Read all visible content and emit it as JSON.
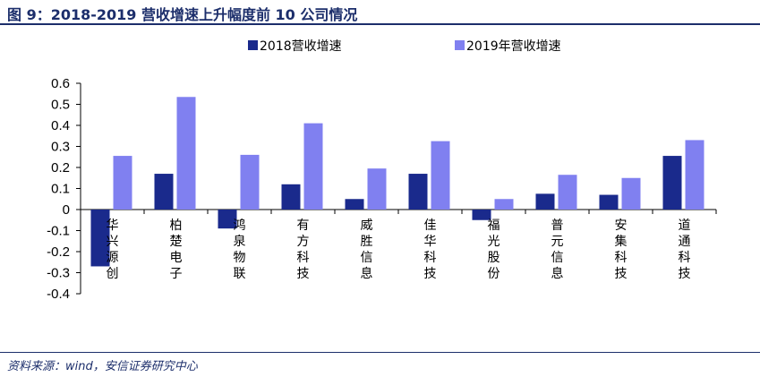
{
  "header": {
    "title": "图 9：2018-2019 营收增速上升幅度前 10 公司情况"
  },
  "footer": {
    "source": "资料来源：wind，安信证券研究中心"
  },
  "chart_data": {
    "type": "bar",
    "categories": [
      "华兴源创",
      "柏楚电子",
      "鸿泉物联",
      "有方科技",
      "威胜信息",
      "佳华科技",
      "福光股份",
      "普元信息",
      "安集科技",
      "道通科技"
    ],
    "series": [
      {
        "name": "2018营收增速",
        "color": "#1a2a8c",
        "values": [
          -0.27,
          0.17,
          -0.09,
          0.12,
          0.05,
          0.17,
          -0.05,
          0.075,
          0.07,
          0.255
        ]
      },
      {
        "name": "2019年营收增速",
        "color": "#8080f0",
        "values": [
          0.255,
          0.535,
          0.26,
          0.41,
          0.195,
          0.325,
          0.05,
          0.165,
          0.15,
          0.33
        ]
      }
    ],
    "ylim": [
      -0.4,
      0.6
    ],
    "yticks": [
      "-0.4",
      "-0.3",
      "-0.2",
      "-0.1",
      "0",
      "0.1",
      "0.2",
      "0.3",
      "0.4",
      "0.5",
      "0.6"
    ],
    "legend": "top"
  }
}
